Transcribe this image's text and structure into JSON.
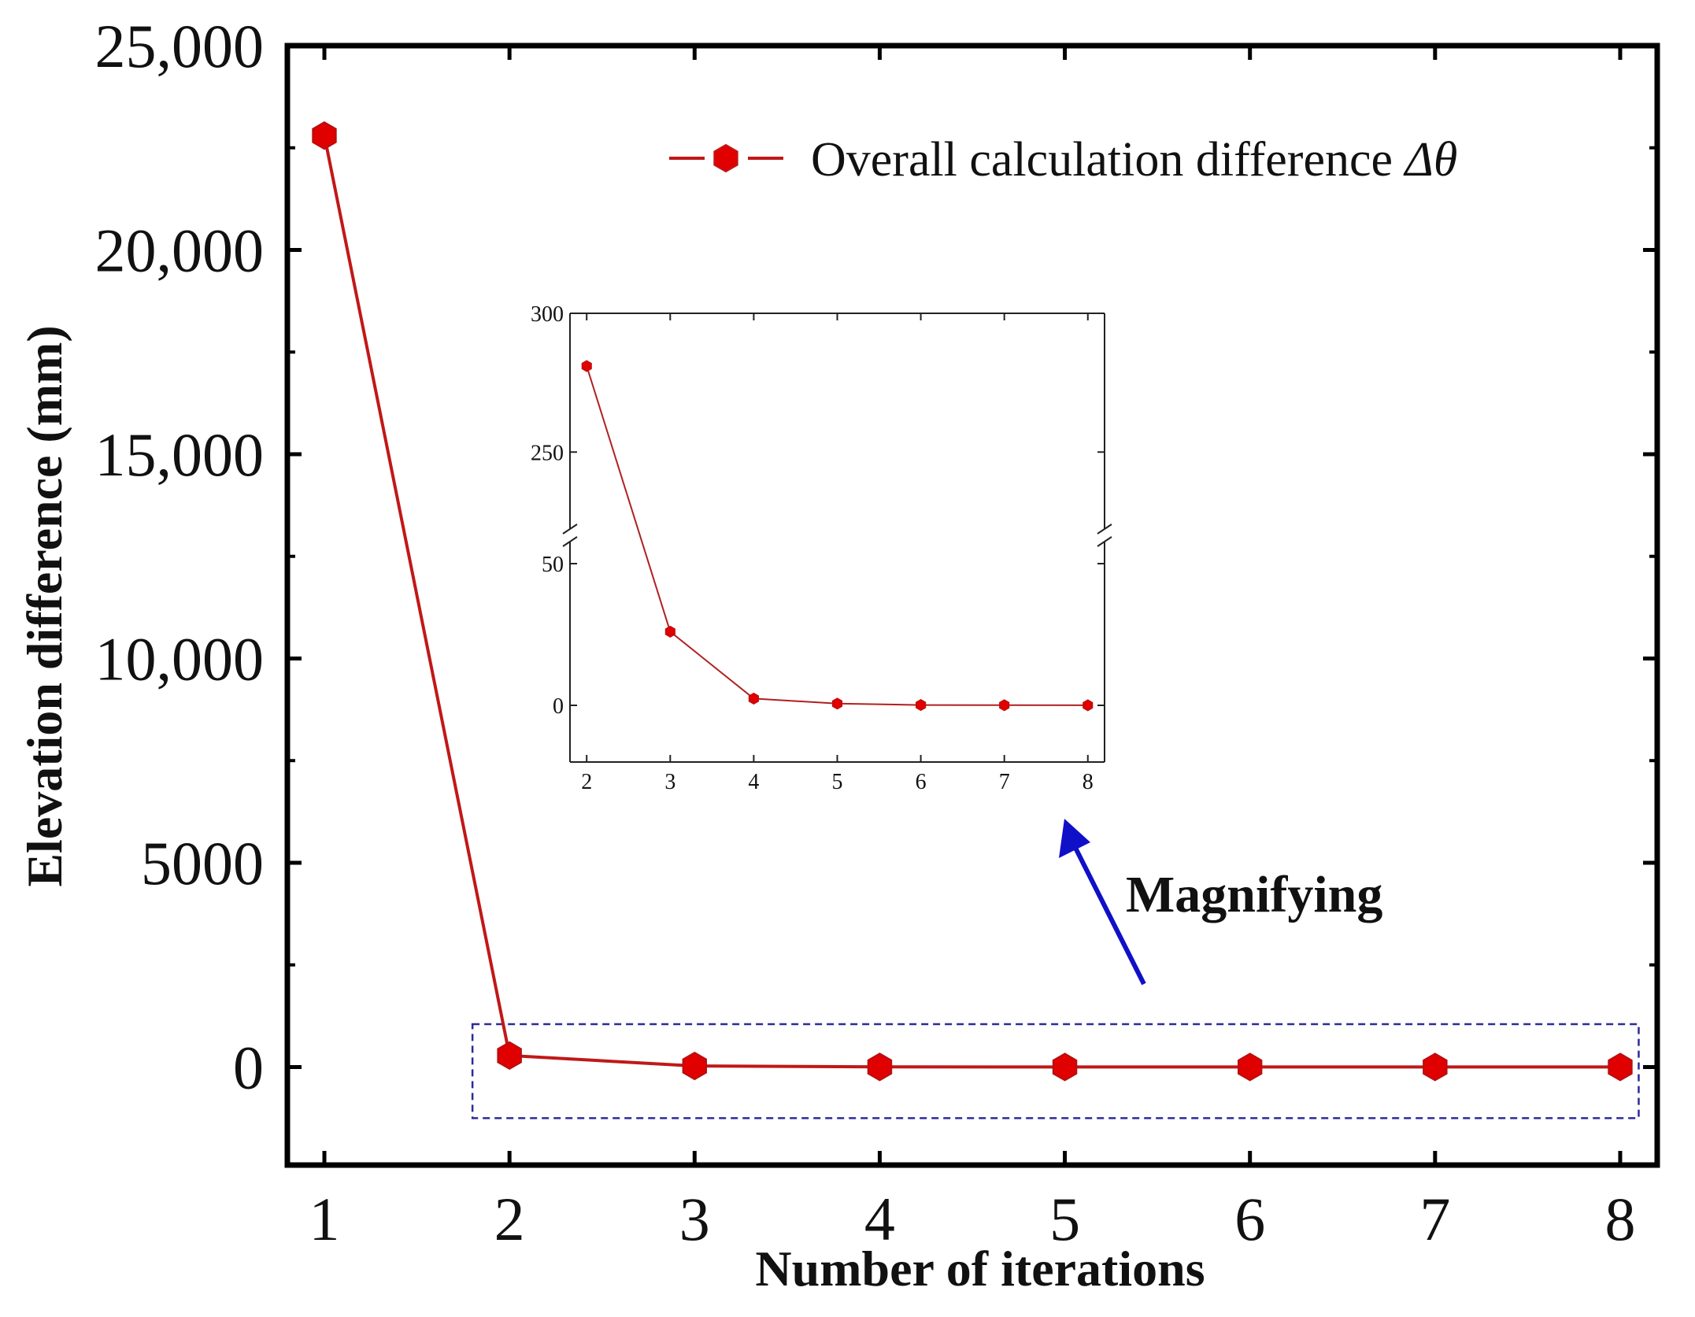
{
  "chart_data": {
    "type": "line",
    "main": {
      "xlabel": "Number of iterations",
      "ylabel": "Elevation difference (mm)",
      "xlim": [
        0.8,
        8.2
      ],
      "ylim": [
        -2400,
        25000
      ],
      "xticks": [
        1,
        2,
        3,
        4,
        5,
        6,
        7,
        8
      ],
      "xtick_labels": [
        "1",
        "2",
        "3",
        "4",
        "5",
        "6",
        "7",
        "8"
      ],
      "yticks": [
        0,
        5000,
        10000,
        15000,
        20000,
        25000
      ],
      "ytick_labels": [
        "0",
        "5000",
        "10,000",
        "15,000",
        "20,000",
        "25,000"
      ],
      "series": [
        {
          "name": "Overall calculation difference Δθ",
          "x": [
            1,
            2,
            3,
            4,
            5,
            6,
            7,
            8
          ],
          "y": [
            22800,
            281,
            26,
            2.4,
            0.6,
            0.1,
            0.05,
            0.02
          ],
          "color": "#e00000",
          "line_color": "#c01818",
          "marker": "hexagon"
        }
      ],
      "legend": {
        "label_prefix": "Overall calculation difference ",
        "symbol": "Δθ",
        "position": "top-right"
      },
      "highlight_box": {
        "x_range": [
          1.8,
          8.1
        ],
        "y_range": [
          -1250,
          1050
        ],
        "color": "#2b2b9a"
      }
    },
    "inset": {
      "type": "line",
      "xlim": [
        1.8,
        8.2
      ],
      "xticks": [
        2,
        3,
        4,
        5,
        6,
        7,
        8
      ],
      "xtick_labels": [
        "2",
        "3",
        "4",
        "5",
        "6",
        "7",
        "8"
      ],
      "axis_break": true,
      "lower_segment": {
        "ylim": [
          -20,
          60
        ],
        "yticks": [
          0,
          50
        ],
        "ytick_labels": [
          "0",
          "50"
        ]
      },
      "upper_segment": {
        "ylim": [
          220,
          300
        ],
        "yticks": [
          250,
          300
        ],
        "ytick_labels": [
          "250",
          "300"
        ]
      },
      "series": [
        {
          "x": [
            2,
            3,
            4,
            5,
            6,
            7,
            8
          ],
          "y": [
            281,
            26,
            2.4,
            0.6,
            0.1,
            0.05,
            0.02
          ],
          "color": "#e00000",
          "line_color": "#b02020"
        }
      ]
    },
    "annotation": {
      "text": "Magnifying",
      "color": "#3a5bc7",
      "arrow_color": "#1010c8"
    }
  }
}
